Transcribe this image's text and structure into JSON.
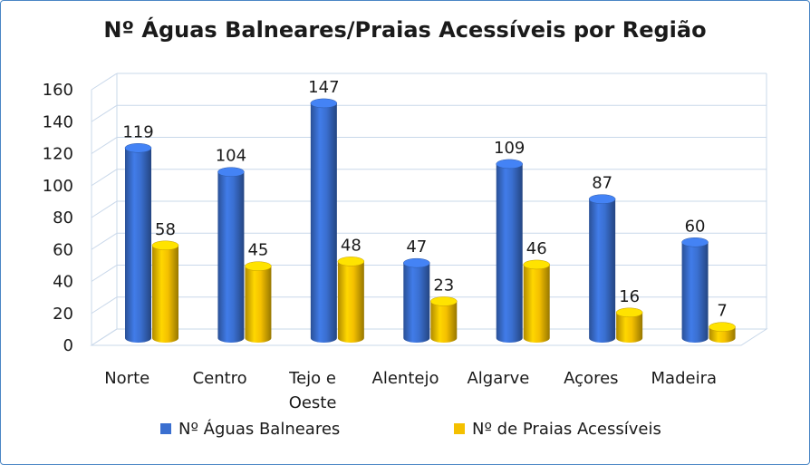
{
  "chart_data": {
    "type": "bar",
    "title": "Nº Águas Balneares/Praias Acessíveis por Região",
    "categories": [
      "Norte",
      "Centro",
      "Tejo e Oeste",
      "Alentejo",
      "Algarve",
      "Açores",
      "Madeira"
    ],
    "category_lines": [
      [
        "Norte"
      ],
      [
        "Centro"
      ],
      [
        "Tejo e",
        "Oeste"
      ],
      [
        "Alentejo"
      ],
      [
        "Algarve"
      ],
      [
        "Açores"
      ],
      [
        "Madeira"
      ]
    ],
    "series": [
      {
        "name": "Nº Águas Balneares",
        "values": [
          119,
          104,
          147,
          47,
          109,
          87,
          60
        ],
        "color": "#3a6fd0"
      },
      {
        "name": "Nº de Praias Acessíveis",
        "values": [
          58,
          45,
          48,
          23,
          46,
          16,
          7
        ],
        "color": "#f4c000"
      }
    ],
    "ylim": [
      0,
      160
    ],
    "yticks": [
      0,
      20,
      40,
      60,
      80,
      100,
      120,
      140,
      160
    ],
    "grid": true,
    "legend_position": "bottom",
    "xlabel": "",
    "ylabel": ""
  }
}
